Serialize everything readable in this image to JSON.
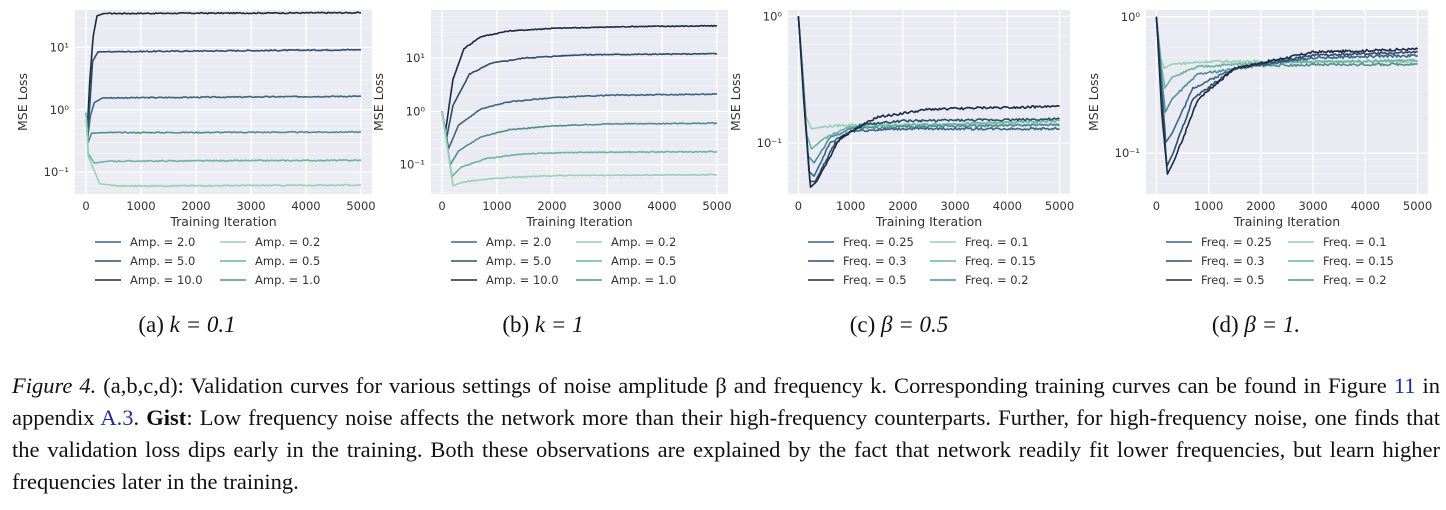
{
  "chart_data": [
    {
      "type": "line",
      "panel_label": "(a)",
      "panel_expr": "k = 0.1",
      "xlabel": "Training Iteration",
      "ylabel": "MSE Loss",
      "yscale": "log",
      "xlim": [
        -200,
        5200
      ],
      "ylim_log10": [
        -1.35,
        1.6
      ],
      "xticks": [
        0,
        1000,
        2000,
        3000,
        4000,
        5000
      ],
      "xtick_labels": [
        "0",
        "1000",
        "2000",
        "3000",
        "4000",
        "5000"
      ],
      "yticks_log10": [
        -1,
        0,
        1
      ],
      "ytick_labels": [
        "10⁻¹",
        "10⁰",
        "10¹"
      ],
      "legend": [
        {
          "name": "Amp. = 2.0",
          "color": "#3a6784"
        },
        {
          "name": "Amp. = 0.2",
          "color": "#99d1b4"
        },
        {
          "name": "Amp. = 5.0",
          "color": "#2d4e6e"
        },
        {
          "name": "Amp. = 0.5",
          "color": "#6bb5a0"
        },
        {
          "name": "Amp. = 10.0",
          "color": "#1d2a44"
        },
        {
          "name": "Amp. = 1.0",
          "color": "#4f8f94"
        }
      ],
      "series": [
        {
          "name": "Amp. = 10.0",
          "color": "#1d2a44",
          "points": [
            [
              0,
              0.9
            ],
            [
              25,
              0.5
            ],
            [
              70,
              3
            ],
            [
              130,
              15
            ],
            [
              200,
              32
            ],
            [
              320,
              35
            ],
            [
              5000,
              36
            ]
          ]
        },
        {
          "name": "Amp. = 5.0",
          "color": "#2d4e6e",
          "points": [
            [
              0,
              0.9
            ],
            [
              25,
              0.4
            ],
            [
              70,
              1.2
            ],
            [
              120,
              6
            ],
            [
              220,
              8.5
            ],
            [
              5000,
              9.2
            ]
          ]
        },
        {
          "name": "Amp. = 2.0",
          "color": "#3a6784",
          "points": [
            [
              0,
              0.9
            ],
            [
              30,
              0.35
            ],
            [
              80,
              0.8
            ],
            [
              150,
              1.3
            ],
            [
              300,
              1.55
            ],
            [
              5000,
              1.65
            ]
          ]
        },
        {
          "name": "Amp. = 1.0",
          "color": "#4f8f94",
          "points": [
            [
              0,
              0.9
            ],
            [
              40,
              0.3
            ],
            [
              100,
              0.42
            ],
            [
              300,
              0.43
            ],
            [
              5000,
              0.44
            ]
          ]
        },
        {
          "name": "Amp. = 0.5",
          "color": "#6bb5a0",
          "points": [
            [
              0,
              0.9
            ],
            [
              40,
              0.2
            ],
            [
              150,
              0.14
            ],
            [
              400,
              0.15
            ],
            [
              5000,
              0.155
            ]
          ]
        },
        {
          "name": "Amp. = 0.2",
          "color": "#99d1b4",
          "points": [
            [
              0,
              0.9
            ],
            [
              40,
              0.18
            ],
            [
              250,
              0.065
            ],
            [
              600,
              0.06
            ],
            [
              5000,
              0.062
            ]
          ]
        }
      ]
    },
    {
      "type": "line",
      "panel_label": "(b)",
      "panel_expr": "k = 1",
      "xlabel": "Training Iteration",
      "ylabel": "MSE Loss",
      "yscale": "log",
      "xlim": [
        -200,
        5200
      ],
      "ylim_log10": [
        -1.55,
        1.9
      ],
      "xticks": [
        0,
        1000,
        2000,
        3000,
        4000,
        5000
      ],
      "xtick_labels": [
        "0",
        "1000",
        "2000",
        "3000",
        "4000",
        "5000"
      ],
      "yticks_log10": [
        -1,
        0,
        1
      ],
      "ytick_labels": [
        "10⁻¹",
        "10⁰",
        "10¹"
      ],
      "legend": [
        {
          "name": "Amp. = 2.0",
          "color": "#3a6784"
        },
        {
          "name": "Amp. = 0.2",
          "color": "#99d1b4"
        },
        {
          "name": "Amp. = 5.0",
          "color": "#2d4e6e"
        },
        {
          "name": "Amp. = 0.5",
          "color": "#6bb5a0"
        },
        {
          "name": "Amp. = 10.0",
          "color": "#1d2a44"
        },
        {
          "name": "Amp. = 1.0",
          "color": "#4f8f94"
        }
      ],
      "series": [
        {
          "name": "Amp. = 10.0",
          "color": "#1d2a44",
          "points": [
            [
              0,
              1.0
            ],
            [
              60,
              0.4
            ],
            [
              200,
              4
            ],
            [
              400,
              15
            ],
            [
              700,
              25
            ],
            [
              1200,
              32
            ],
            [
              2000,
              36
            ],
            [
              3500,
              39
            ],
            [
              5000,
              40
            ]
          ]
        },
        {
          "name": "Amp. = 5.0",
          "color": "#2d4e6e",
          "points": [
            [
              0,
              1.0
            ],
            [
              80,
              0.3
            ],
            [
              200,
              1.3
            ],
            [
              500,
              5
            ],
            [
              900,
              8
            ],
            [
              1500,
              10
            ],
            [
              2500,
              11.5
            ],
            [
              5000,
              12
            ]
          ]
        },
        {
          "name": "Amp. = 2.0",
          "color": "#3a6784",
          "points": [
            [
              0,
              1.0
            ],
            [
              120,
              0.2
            ],
            [
              300,
              0.55
            ],
            [
              700,
              1.1
            ],
            [
              1200,
              1.5
            ],
            [
              2000,
              1.8
            ],
            [
              3000,
              2.0
            ],
            [
              5000,
              2.1
            ]
          ]
        },
        {
          "name": "Amp. = 1.0",
          "color": "#4f8f94",
          "points": [
            [
              0,
              1.0
            ],
            [
              150,
              0.1
            ],
            [
              300,
              0.18
            ],
            [
              700,
              0.33
            ],
            [
              1200,
              0.45
            ],
            [
              2000,
              0.53
            ],
            [
              3000,
              0.58
            ],
            [
              5000,
              0.6
            ]
          ]
        },
        {
          "name": "Amp. = 0.5",
          "color": "#6bb5a0",
          "points": [
            [
              0,
              1.0
            ],
            [
              180,
              0.06
            ],
            [
              350,
              0.09
            ],
            [
              800,
              0.13
            ],
            [
              1500,
              0.16
            ],
            [
              2500,
              0.17
            ],
            [
              5000,
              0.175
            ]
          ]
        },
        {
          "name": "Amp. = 0.2",
          "color": "#99d1b4",
          "points": [
            [
              0,
              1.0
            ],
            [
              200,
              0.04
            ],
            [
              400,
              0.048
            ],
            [
              1000,
              0.056
            ],
            [
              2000,
              0.062
            ],
            [
              5000,
              0.065
            ]
          ]
        }
      ]
    },
    {
      "type": "line",
      "panel_label": "(c)",
      "panel_expr": "β = 0.5",
      "xlabel": "Training Iteration",
      "ylabel": "MSE Loss",
      "yscale": "log",
      "xlim": [
        -200,
        5200
      ],
      "ylim_log10": [
        -1.4,
        0.05
      ],
      "xticks": [
        0,
        1000,
        2000,
        3000,
        4000,
        5000
      ],
      "xtick_labels": [
        "0",
        "1000",
        "2000",
        "3000",
        "4000",
        "5000"
      ],
      "yticks_log10": [
        -1,
        0
      ],
      "ytick_labels": [
        "10⁻¹",
        "10⁰"
      ],
      "legend": [
        {
          "name": "Freq. = 0.25",
          "color": "#3a6784"
        },
        {
          "name": "Freq. = 0.1",
          "color": "#99d1b4"
        },
        {
          "name": "Freq. = 0.3",
          "color": "#2d4e6e"
        },
        {
          "name": "Freq. = 0.15",
          "color": "#6bb5a0"
        },
        {
          "name": "Freq. = 0.5",
          "color": "#1d2a44"
        },
        {
          "name": "Freq. = 0.2",
          "color": "#4f8f94"
        }
      ],
      "series": [
        {
          "name": "Freq. = 0.1",
          "color": "#99d1b4",
          "points": [
            [
              0,
              1.0
            ],
            [
              80,
              0.4
            ],
            [
              150,
              0.16
            ],
            [
              250,
              0.13
            ],
            [
              500,
              0.135
            ],
            [
              1000,
              0.14
            ],
            [
              5000,
              0.14
            ]
          ]
        },
        {
          "name": "Freq. = 0.15",
          "color": "#6bb5a0",
          "points": [
            [
              0,
              1.0
            ],
            [
              80,
              0.35
            ],
            [
              150,
              0.12
            ],
            [
              250,
              0.09
            ],
            [
              500,
              0.11
            ],
            [
              1000,
              0.135
            ],
            [
              5000,
              0.15
            ]
          ]
        },
        {
          "name": "Freq. = 0.2",
          "color": "#4f8f94",
          "points": [
            [
              0,
              1.0
            ],
            [
              90,
              0.3
            ],
            [
              180,
              0.08
            ],
            [
              300,
              0.07
            ],
            [
              600,
              0.11
            ],
            [
              1000,
              0.13
            ],
            [
              2000,
              0.135
            ],
            [
              5000,
              0.14
            ]
          ]
        },
        {
          "name": "Freq. = 0.25",
          "color": "#3a6784",
          "points": [
            [
              0,
              1.0
            ],
            [
              90,
              0.28
            ],
            [
              200,
              0.06
            ],
            [
              300,
              0.055
            ],
            [
              600,
              0.1
            ],
            [
              1000,
              0.125
            ],
            [
              2000,
              0.13
            ],
            [
              5000,
              0.13
            ]
          ]
        },
        {
          "name": "Freq. = 0.3",
          "color": "#2d4e6e",
          "points": [
            [
              0,
              1.0
            ],
            [
              100,
              0.25
            ],
            [
              220,
              0.05
            ],
            [
              320,
              0.05
            ],
            [
              700,
              0.1
            ],
            [
              1200,
              0.14
            ],
            [
              2000,
              0.15
            ],
            [
              5000,
              0.155
            ]
          ]
        },
        {
          "name": "Freq. = 0.5",
          "color": "#1d2a44",
          "points": [
            [
              0,
              1.0
            ],
            [
              100,
              0.22
            ],
            [
              230,
              0.045
            ],
            [
              350,
              0.05
            ],
            [
              800,
              0.11
            ],
            [
              1500,
              0.16
            ],
            [
              2500,
              0.185
            ],
            [
              3500,
              0.19
            ],
            [
              5000,
              0.195
            ]
          ]
        }
      ]
    },
    {
      "type": "line",
      "panel_label": "(d)",
      "panel_expr": "β = 1.",
      "xlabel": "Training Iteration",
      "ylabel": "MSE Loss",
      "yscale": "log",
      "xlim": [
        -200,
        5200
      ],
      "ylim_log10": [
        -1.3,
        0.05
      ],
      "xticks": [
        0,
        1000,
        2000,
        3000,
        4000,
        5000
      ],
      "xtick_labels": [
        "0",
        "1000",
        "2000",
        "3000",
        "4000",
        "5000"
      ],
      "yticks_log10": [
        -1,
        0
      ],
      "ytick_labels": [
        "10⁻¹",
        "10⁰"
      ],
      "legend": [
        {
          "name": "Freq. = 0.25",
          "color": "#3a6784"
        },
        {
          "name": "Freq. = 0.1",
          "color": "#99d1b4"
        },
        {
          "name": "Freq. = 0.3",
          "color": "#2d4e6e"
        },
        {
          "name": "Freq. = 0.15",
          "color": "#6bb5a0"
        },
        {
          "name": "Freq. = 0.5",
          "color": "#1d2a44"
        },
        {
          "name": "Freq. = 0.2",
          "color": "#4f8f94"
        }
      ],
      "series": [
        {
          "name": "Freq. = 0.1",
          "color": "#99d1b4",
          "points": [
            [
              0,
              1.0
            ],
            [
              80,
              0.5
            ],
            [
              150,
              0.42
            ],
            [
              300,
              0.45
            ],
            [
              1000,
              0.47
            ],
            [
              5000,
              0.47
            ]
          ]
        },
        {
          "name": "Freq. = 0.15",
          "color": "#6bb5a0",
          "points": [
            [
              0,
              1.0
            ],
            [
              90,
              0.45
            ],
            [
              160,
              0.3
            ],
            [
              300,
              0.36
            ],
            [
              800,
              0.43
            ],
            [
              2000,
              0.46
            ],
            [
              5000,
              0.48
            ]
          ]
        },
        {
          "name": "Freq. = 0.2",
          "color": "#4f8f94",
          "points": [
            [
              0,
              1.0
            ],
            [
              100,
              0.35
            ],
            [
              170,
              0.2
            ],
            [
              300,
              0.25
            ],
            [
              800,
              0.38
            ],
            [
              2000,
              0.44
            ],
            [
              5000,
              0.45
            ]
          ]
        },
        {
          "name": "Freq. = 0.25",
          "color": "#3a6784",
          "points": [
            [
              0,
              1.0
            ],
            [
              100,
              0.3
            ],
            [
              180,
              0.12
            ],
            [
              300,
              0.14
            ],
            [
              700,
              0.3
            ],
            [
              1500,
              0.42
            ],
            [
              3000,
              0.5
            ],
            [
              5000,
              0.52
            ]
          ]
        },
        {
          "name": "Freq. = 0.3",
          "color": "#2d4e6e",
          "points": [
            [
              0,
              1.0
            ],
            [
              100,
              0.25
            ],
            [
              200,
              0.08
            ],
            [
              320,
              0.1
            ],
            [
              700,
              0.25
            ],
            [
              1500,
              0.42
            ],
            [
              3000,
              0.52
            ],
            [
              5000,
              0.55
            ]
          ]
        },
        {
          "name": "Freq. = 0.5",
          "color": "#1d2a44",
          "points": [
            [
              0,
              1.0
            ],
            [
              100,
              0.2
            ],
            [
              210,
              0.07
            ],
            [
              350,
              0.09
            ],
            [
              800,
              0.25
            ],
            [
              1500,
              0.42
            ],
            [
              3000,
              0.55
            ],
            [
              5000,
              0.58
            ]
          ]
        }
      ]
    }
  ],
  "caption": {
    "label": "Figure 4.",
    "part1": " (a,b,c,d): Validation curves for various settings of noise amplitude β and frequency k. Corresponding training curves can be found in Figure ",
    "ref_figure": "11",
    "part2": " in appendix ",
    "ref_appendix": "A.3",
    "part3": ". ",
    "gist_label": "Gist",
    "part4": ": Low frequency noise affects the network more than their high-frequency counterparts. Further, for high-frequency noise, one finds that the validation loss dips early in the training. Both these observations are explained by the fact that network readily fit lower frequencies, but learn higher frequencies later in the training."
  }
}
